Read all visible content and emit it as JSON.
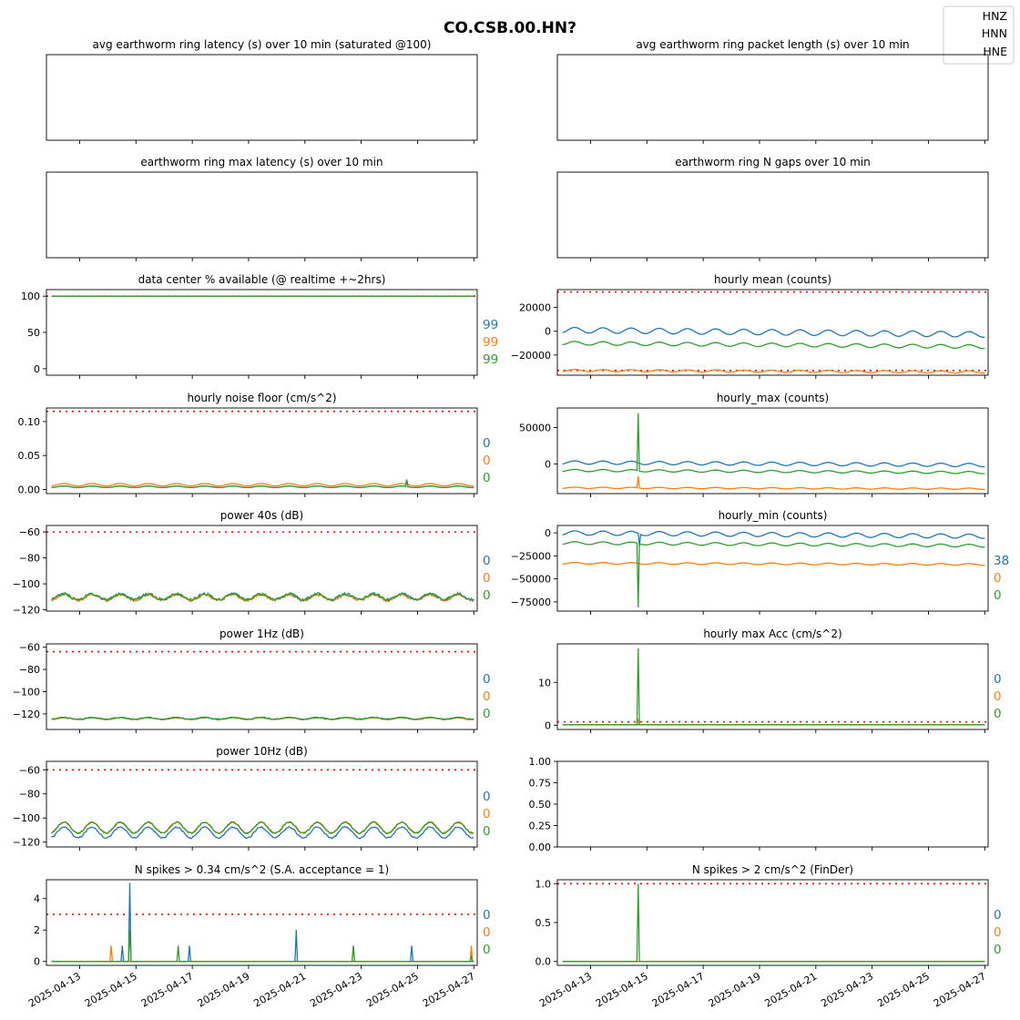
{
  "figure": {
    "title": "CO.CSB.00.HN?",
    "legend": {
      "placement": "top-right",
      "entries": [
        "HNZ",
        "HNN",
        "HNE"
      ]
    }
  },
  "colors": {
    "HNZ": "#1f77b4",
    "HNN": "#ff7f0e",
    "HNE": "#2ca02c",
    "threshold": "#ff0000",
    "axes": "#000000"
  },
  "x_axis": {
    "start": "2025-04-12",
    "end": "2025-04-27",
    "tick_labels": [
      "2025-04-13",
      "2025-04-15",
      "2025-04-17",
      "2025-04-19",
      "2025-04-21",
      "2025-04-23",
      "2025-04-25",
      "2025-04-27"
    ]
  },
  "chart_data": [
    {
      "type": "line",
      "col": 0,
      "row": 0,
      "title": "avg earthworm ring latency (s)   over 10 min (saturated @100)",
      "empty": true,
      "yticks": [],
      "series": [],
      "side_labels": []
    },
    {
      "type": "line",
      "col": 1,
      "row": 0,
      "title": "avg earthworm ring packet length (s)   over 10 min",
      "empty": true,
      "yticks": [],
      "series": [],
      "side_labels": []
    },
    {
      "type": "line",
      "col": 0,
      "row": 1,
      "title": "earthworm ring max latency (s)   over 10 min",
      "empty": true,
      "yticks": [],
      "series": [],
      "side_labels": []
    },
    {
      "type": "line",
      "col": 1,
      "row": 1,
      "title": "earthworm ring N gaps   over 10 min",
      "empty": true,
      "yticks": [],
      "series": [],
      "side_labels": []
    },
    {
      "type": "line",
      "col": 0,
      "row": 2,
      "title": "data center % available (@ realtime +~2hrs)",
      "ylim": [
        -9,
        109
      ],
      "yticks": [
        {
          "v": 0,
          "label": "0"
        },
        {
          "v": 50,
          "label": "50"
        },
        {
          "v": 100,
          "label": "100"
        }
      ],
      "thresholds": [
        100
      ],
      "series": [
        {
          "channel": "HNZ",
          "gen": {
            "kind": "flat",
            "base": 100
          }
        },
        {
          "channel": "HNN",
          "gen": {
            "kind": "flat",
            "base": 100
          }
        },
        {
          "channel": "HNE",
          "gen": {
            "kind": "flat",
            "base": 100
          }
        }
      ],
      "side_labels": [
        "99",
        "99",
        "99"
      ]
    },
    {
      "type": "line",
      "col": 1,
      "row": 2,
      "title": "hourly mean (counts)",
      "ylim": [
        -37000,
        35000
      ],
      "yticks": [
        {
          "v": -20000,
          "label": "−20000"
        },
        {
          "v": 0,
          "label": "0"
        },
        {
          "v": 20000,
          "label": "20000"
        }
      ],
      "thresholds": [
        33000,
        -33000
      ],
      "series": [
        {
          "channel": "HNZ",
          "gen": {
            "kind": "sine",
            "base": 1000,
            "amp": 2300,
            "drift": -500
          }
        },
        {
          "channel": "HNN",
          "gen": {
            "kind": "sine",
            "base": -33000,
            "amp": 900,
            "drift": -180
          }
        },
        {
          "channel": "HNE",
          "gen": {
            "kind": "sine",
            "base": -10000,
            "amp": 1500,
            "drift": -400
          }
        }
      ],
      "side_labels": []
    },
    {
      "type": "line",
      "col": 0,
      "row": 3,
      "title": "hourly noise floor (cm/s^2)",
      "ylim": [
        -0.006,
        0.12
      ],
      "yticks": [
        {
          "v": 0,
          "label": "0.00"
        },
        {
          "v": 0.05,
          "label": "0.05"
        },
        {
          "v": 0.1,
          "label": "0.10"
        }
      ],
      "thresholds": [
        0.115
      ],
      "series": [
        {
          "channel": "HNZ",
          "gen": {
            "kind": "sine",
            "base": 0.004,
            "amp": 0.0012,
            "spikes": [
              [
                12.6,
                0.014
              ]
            ]
          }
        },
        {
          "channel": "HNN",
          "gen": {
            "kind": "sine",
            "base": 0.007,
            "amp": 0.0018
          }
        },
        {
          "channel": "HNE",
          "gen": {
            "kind": "sine",
            "base": 0.004,
            "amp": 0.0012,
            "spikes": [
              [
                12.6,
                0.015
              ]
            ]
          }
        }
      ],
      "side_labels": [
        "0",
        "0",
        "0"
      ]
    },
    {
      "type": "line",
      "col": 1,
      "row": 3,
      "title": "hourly_max (counts)",
      "ylim": [
        -41000,
        77000
      ],
      "yticks": [
        {
          "v": 0,
          "label": "0"
        },
        {
          "v": 50000,
          "label": "50000"
        }
      ],
      "thresholds": [],
      "series": [
        {
          "channel": "HNZ",
          "gen": {
            "kind": "sine",
            "base": 2000,
            "amp": 2300,
            "drift": -500
          }
        },
        {
          "channel": "HNN",
          "gen": {
            "kind": "sine",
            "base": -33000,
            "amp": 900,
            "drift": -180,
            "spikes": [
              [
                2.7,
                -17000
              ]
            ]
          }
        },
        {
          "channel": "HNE",
          "gen": {
            "kind": "sine",
            "base": -9000,
            "amp": 1500,
            "drift": -400,
            "spikes": [
              [
                2.7,
                70000
              ]
            ]
          }
        }
      ],
      "side_labels": []
    },
    {
      "type": "line",
      "col": 0,
      "row": 4,
      "title": "power 40s (dB)",
      "ylim": [
        -121,
        -55
      ],
      "yticks": [
        {
          "v": -120,
          "label": "−120"
        },
        {
          "v": -100,
          "label": "−100"
        },
        {
          "v": -80,
          "label": "−80"
        },
        {
          "v": -60,
          "label": "−60"
        }
      ],
      "thresholds": [
        -60
      ],
      "series": [
        {
          "channel": "HNZ",
          "gen": {
            "kind": "sine",
            "base": -110,
            "amp": 2.2,
            "noise": 1.0
          }
        },
        {
          "channel": "HNN",
          "gen": {
            "kind": "sine",
            "base": -110.5,
            "amp": 2.2,
            "noise": 1.0
          }
        },
        {
          "channel": "HNE",
          "gen": {
            "kind": "sine",
            "base": -110,
            "amp": 2.2,
            "noise": 1.0
          }
        }
      ],
      "side_labels": [
        "0",
        "0",
        "0"
      ]
    },
    {
      "type": "line",
      "col": 1,
      "row": 4,
      "title": "hourly_min (counts)",
      "ylim": [
        -85000,
        8000
      ],
      "yticks": [
        {
          "v": -75000,
          "label": "−75000"
        },
        {
          "v": -50000,
          "label": "−50000"
        },
        {
          "v": -25000,
          "label": "−25000"
        },
        {
          "v": 0,
          "label": "0"
        }
      ],
      "thresholds": [],
      "series": [
        {
          "channel": "HNZ",
          "gen": {
            "kind": "sine",
            "base": 0,
            "amp": 2300,
            "drift": -500,
            "spikes": [
              [
                2.75,
                -14000
              ]
            ]
          }
        },
        {
          "channel": "HNN",
          "gen": {
            "kind": "sine",
            "base": -33000,
            "amp": 900,
            "drift": -180
          }
        },
        {
          "channel": "HNE",
          "gen": {
            "kind": "sine",
            "base": -11000,
            "amp": 1500,
            "drift": -400,
            "spikes": [
              [
                2.7,
                -81000
              ]
            ]
          }
        }
      ],
      "side_labels": [
        "38",
        "0",
        "0"
      ]
    },
    {
      "type": "line",
      "col": 0,
      "row": 5,
      "title": "power 1Hz (dB)",
      "ylim": [
        -134,
        -57
      ],
      "yticks": [
        {
          "v": -120,
          "label": "−120"
        },
        {
          "v": -100,
          "label": "−100"
        },
        {
          "v": -80,
          "label": "−80"
        },
        {
          "v": -60,
          "label": "−60"
        }
      ],
      "thresholds": [
        -64
      ],
      "series": [
        {
          "channel": "HNZ",
          "gen": {
            "kind": "sine",
            "base": -124,
            "amp": 0.8,
            "noise": 0.4
          }
        },
        {
          "channel": "HNN",
          "gen": {
            "kind": "sine",
            "base": -124.3,
            "amp": 0.8,
            "noise": 0.4
          }
        },
        {
          "channel": "HNE",
          "gen": {
            "kind": "sine",
            "base": -124,
            "amp": 0.8,
            "noise": 0.4
          }
        }
      ],
      "side_labels": [
        "0",
        "0",
        "0"
      ]
    },
    {
      "type": "line",
      "col": 1,
      "row": 5,
      "title": "hourly max Acc (cm/s^2)",
      "ylim": [
        -1,
        19
      ],
      "yticks": [
        {
          "v": 0,
          "label": "0"
        },
        {
          "v": 10,
          "label": "10"
        }
      ],
      "thresholds": [
        0.8
      ],
      "series": [
        {
          "channel": "HNZ",
          "gen": {
            "kind": "flat",
            "base": 0.1
          }
        },
        {
          "channel": "HNN",
          "gen": {
            "kind": "flat",
            "base": 0.1,
            "spikes": [
              [
                2.7,
                1.2
              ]
            ]
          }
        },
        {
          "channel": "HNE",
          "gen": {
            "kind": "flat",
            "base": 0.1,
            "spikes": [
              [
                2.7,
                18
              ]
            ]
          }
        }
      ],
      "side_labels": [
        "0",
        "0",
        "0"
      ]
    },
    {
      "type": "line",
      "col": 0,
      "row": 6,
      "title": "power 10Hz (dB)",
      "ylim": [
        -124,
        -53
      ],
      "yticks": [
        {
          "v": -120,
          "label": "−120"
        },
        {
          "v": -100,
          "label": "−100"
        },
        {
          "v": -80,
          "label": "−80"
        },
        {
          "v": -60,
          "label": "−60"
        }
      ],
      "thresholds": [
        -60
      ],
      "series": [
        {
          "channel": "HNZ",
          "gen": {
            "kind": "sine",
            "base": -112,
            "amp": 4.5,
            "noise": 0.6
          }
        },
        {
          "channel": "HNN",
          "gen": {
            "kind": "sine",
            "base": -108,
            "amp": 4.5,
            "noise": 0.6
          }
        },
        {
          "channel": "HNE",
          "gen": {
            "kind": "sine",
            "base": -108,
            "amp": 4.5,
            "noise": 0.6
          }
        }
      ],
      "side_labels": [
        "0",
        "0",
        "0"
      ]
    },
    {
      "type": "line",
      "col": 1,
      "row": 6,
      "title": "",
      "ylim": [
        0,
        1
      ],
      "yticks": [
        {
          "v": 0,
          "label": "0.00"
        },
        {
          "v": 0.25,
          "label": "0.25"
        },
        {
          "v": 0.5,
          "label": "0.50"
        },
        {
          "v": 0.75,
          "label": "0.75"
        },
        {
          "v": 1,
          "label": "1.00"
        }
      ],
      "thresholds": [],
      "series": [],
      "side_labels": []
    },
    {
      "type": "line",
      "col": 0,
      "row": 7,
      "title": "N spikes > 0.34 cm/s^2 (S.A. acceptance = 1)",
      "ylim": [
        -0.25,
        5.2
      ],
      "yticks": [
        {
          "v": 0,
          "label": "0"
        },
        {
          "v": 2,
          "label": "2"
        },
        {
          "v": 4,
          "label": "4"
        }
      ],
      "thresholds": [
        3
      ],
      "series": [
        {
          "channel": "HNZ",
          "gen": {
            "kind": "flat",
            "base": 0,
            "spikes": [
              [
                2.5,
                1
              ],
              [
                2.8,
                5
              ],
              [
                4.9,
                1
              ],
              [
                8.7,
                2
              ],
              [
                12.8,
                1
              ]
            ]
          }
        },
        {
          "channel": "HNN",
          "gen": {
            "kind": "flat",
            "base": 0,
            "spikes": [
              [
                2.1,
                1
              ],
              [
                10.7,
                1
              ],
              [
                14.9,
                1
              ]
            ]
          }
        },
        {
          "channel": "HNE",
          "gen": {
            "kind": "flat",
            "base": 0,
            "spikes": [
              [
                2.8,
                2
              ],
              [
                4.5,
                1
              ],
              [
                10.7,
                1
              ],
              [
                14.9,
                0.3
              ]
            ]
          }
        }
      ],
      "side_labels": [
        "0",
        "0",
        "0"
      ]
    },
    {
      "type": "line",
      "col": 1,
      "row": 7,
      "title": "N spikes > 2 cm/s^2 (FinDer)",
      "ylim": [
        -0.05,
        1.05
      ],
      "yticks": [
        {
          "v": 0,
          "label": "0.0"
        },
        {
          "v": 0.5,
          "label": "0.5"
        },
        {
          "v": 1,
          "label": "1.0"
        }
      ],
      "thresholds": [
        1
      ],
      "series": [
        {
          "channel": "HNZ",
          "gen": {
            "kind": "flat",
            "base": 0
          }
        },
        {
          "channel": "HNN",
          "gen": {
            "kind": "flat",
            "base": 0
          }
        },
        {
          "channel": "HNE",
          "gen": {
            "kind": "flat",
            "base": 0,
            "spikes": [
              [
                2.7,
                1
              ]
            ]
          }
        }
      ],
      "side_labels": [
        "0",
        "0",
        "0"
      ]
    }
  ]
}
